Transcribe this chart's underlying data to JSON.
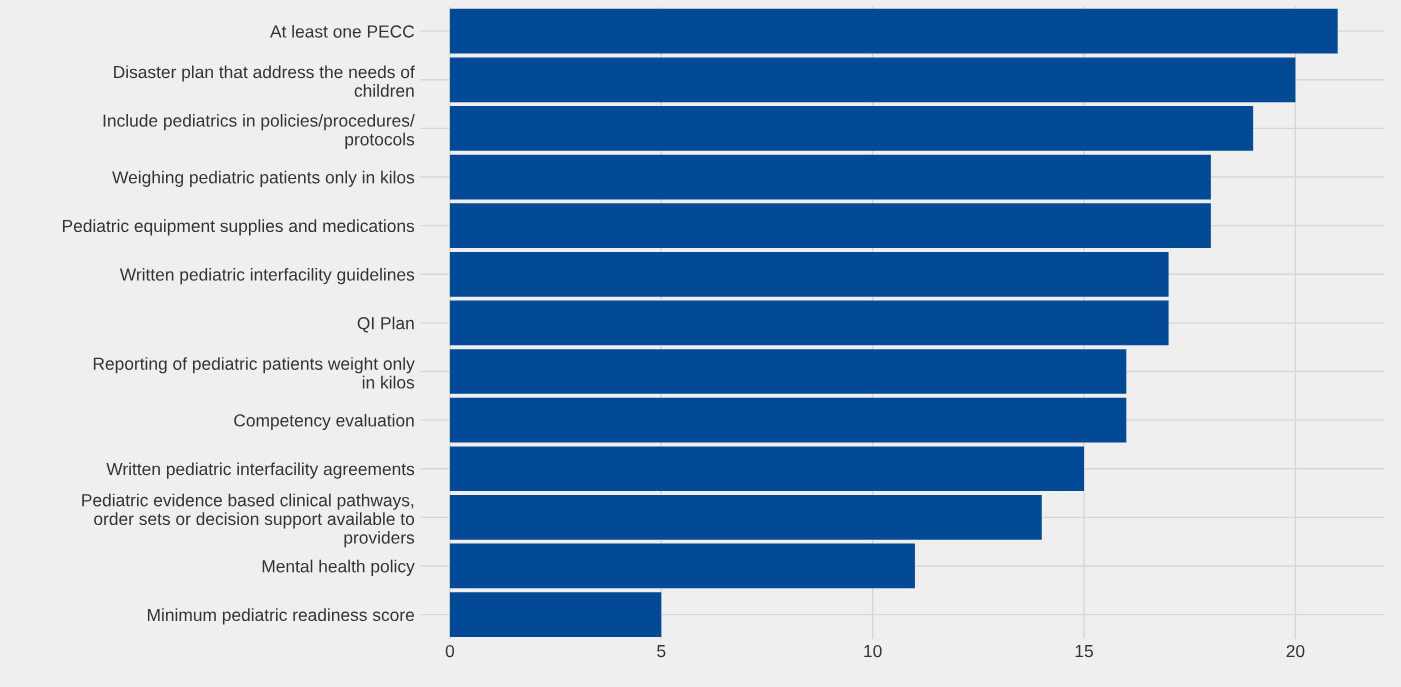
{
  "chart_data": {
    "type": "bar",
    "orientation": "horizontal",
    "categories": [
      "At least one PECC",
      "Disaster plan that address the needs of\nchildren",
      "Include pediatrics in policies/procedures/\nprotocols",
      "Weighing pediatric patients only in kilos",
      "Pediatric equipment supplies and medications",
      "Written pediatric interfacility guidelines",
      "QI Plan",
      "Reporting of pediatric patients weight only\nin kilos",
      "Competency evaluation",
      "Written pediatric interfacility agreements",
      "Pediatric evidence based clinical pathways,\norder sets or decision support available to\nproviders",
      "Mental health policy",
      "Minimum pediatric readiness score"
    ],
    "values": [
      21,
      20,
      19,
      18,
      18,
      17,
      17,
      16,
      16,
      15,
      14,
      11,
      5
    ],
    "color": "#024a96",
    "xlim": [
      -0.7,
      22.1
    ],
    "xticks": [
      0,
      5,
      10,
      15,
      20
    ],
    "grid": true
  }
}
